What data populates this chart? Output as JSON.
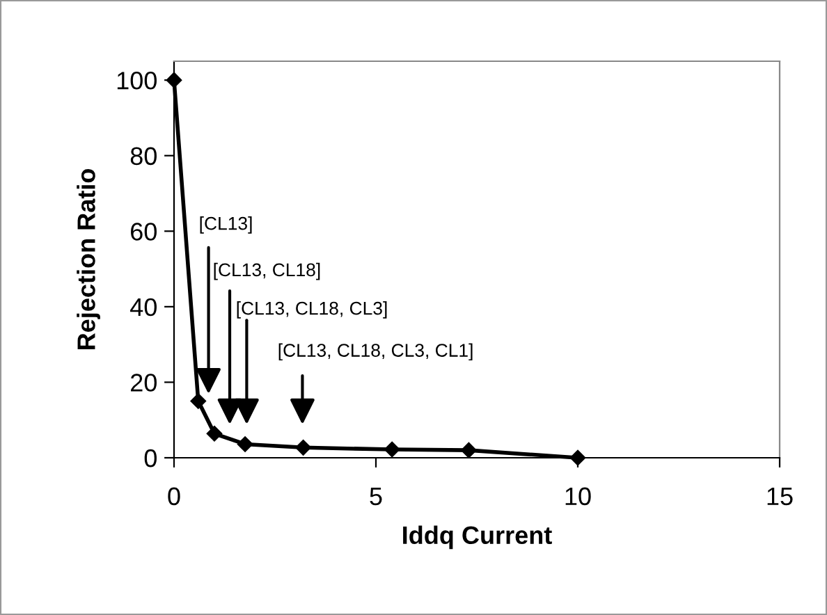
{
  "chart_data": {
    "type": "line",
    "xlabel": "Iddq Current",
    "ylabel": "Rejection Ratio",
    "x": [
      0,
      0.6,
      1.0,
      1.76,
      3.2,
      5.4,
      7.3,
      10
    ],
    "series": [
      {
        "color": "#000000",
        "values": [
          100,
          15,
          6.4,
          3.6,
          2.7,
          2.2,
          2.0,
          0
        ]
      }
    ],
    "xlim": [
      0,
      15
    ],
    "xticks": [
      0,
      5,
      10,
      15
    ],
    "ylim": [
      0,
      105
    ],
    "yticks": [
      0,
      20,
      40,
      60,
      80,
      100
    ],
    "marker": "diamond",
    "line_style": "solid",
    "grid": false,
    "annotations": [
      "[CL13]",
      "[CL13, CL18]",
      "[CL13, CL18, CL3]",
      "[CL13, CL18, CL3, CL1]"
    ]
  }
}
